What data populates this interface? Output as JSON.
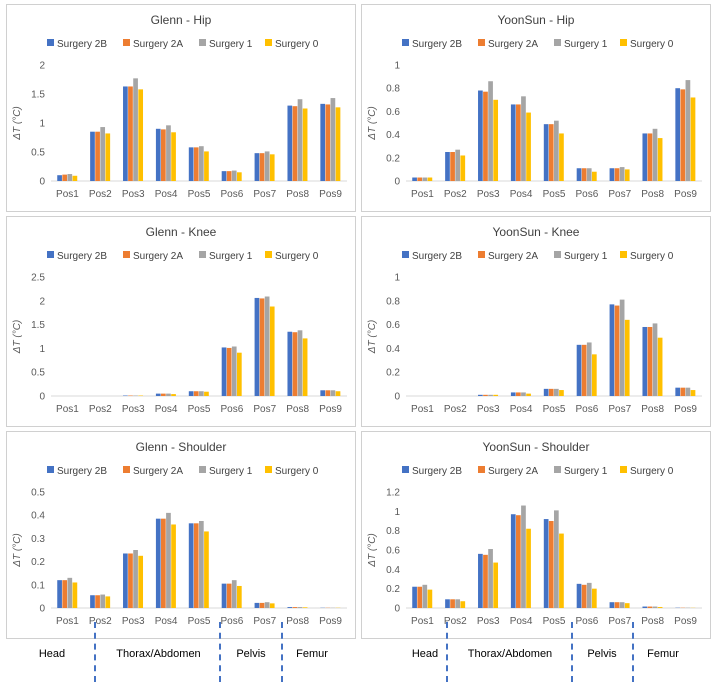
{
  "colors": {
    "Surgery 2B": "#4472c4",
    "Surgery 2A": "#ed7d31",
    "Surgery 1": "#a5a5a5",
    "Surgery 0": "#ffc000"
  },
  "chart_data": [
    {
      "type": "bar",
      "title": "Glenn - Hip",
      "ylabel": "ΔT (°C)",
      "categories": [
        "Pos1",
        "Pos2",
        "Pos3",
        "Pos4",
        "Pos5",
        "Pos6",
        "Pos7",
        "Pos8",
        "Pos9"
      ],
      "yticks": [
        "0",
        "0.5",
        "1",
        "1.5",
        "2"
      ],
      "ylim": [
        0,
        2
      ],
      "series": [
        {
          "name": "Surgery 2B",
          "values": [
            0.1,
            0.85,
            1.63,
            0.9,
            0.58,
            0.17,
            0.48,
            1.3,
            1.33
          ]
        },
        {
          "name": "Surgery 2A",
          "values": [
            0.11,
            0.85,
            1.63,
            0.89,
            0.58,
            0.17,
            0.48,
            1.29,
            1.32
          ]
        },
        {
          "name": "Surgery 1",
          "values": [
            0.12,
            0.93,
            1.77,
            0.96,
            0.6,
            0.18,
            0.51,
            1.41,
            1.43
          ]
        },
        {
          "name": "Surgery 0",
          "values": [
            0.09,
            0.82,
            1.58,
            0.84,
            0.51,
            0.15,
            0.46,
            1.25,
            1.27
          ]
        }
      ]
    },
    {
      "type": "bar",
      "title": "YoonSun - Hip",
      "ylabel": "ΔT (°C)",
      "categories": [
        "Pos1",
        "Pos2",
        "Pos3",
        "Pos4",
        "Pos5",
        "Pos6",
        "Pos7",
        "Pos8",
        "Pos9"
      ],
      "yticks": [
        "0",
        "0.2",
        "0.4",
        "0.6",
        "0.8",
        "1"
      ],
      "ylim": [
        0,
        1
      ],
      "series": [
        {
          "name": "Surgery 2B",
          "values": [
            0.03,
            0.25,
            0.78,
            0.66,
            0.49,
            0.11,
            0.11,
            0.41,
            0.8
          ]
        },
        {
          "name": "Surgery 2A",
          "values": [
            0.03,
            0.25,
            0.77,
            0.66,
            0.49,
            0.11,
            0.11,
            0.41,
            0.79
          ]
        },
        {
          "name": "Surgery 1",
          "values": [
            0.03,
            0.27,
            0.86,
            0.73,
            0.52,
            0.11,
            0.12,
            0.45,
            0.87
          ]
        },
        {
          "name": "Surgery 0",
          "values": [
            0.03,
            0.22,
            0.7,
            0.59,
            0.41,
            0.08,
            0.1,
            0.37,
            0.72
          ]
        }
      ]
    },
    {
      "type": "bar",
      "title": "Glenn - Knee",
      "ylabel": "ΔT (°C)",
      "categories": [
        "Pos1",
        "Pos2",
        "Pos3",
        "Pos4",
        "Pos5",
        "Pos6",
        "Pos7",
        "Pos8",
        "Pos9"
      ],
      "yticks": [
        "0",
        "0.5",
        "1",
        "1.5",
        "2",
        "2.5"
      ],
      "ylim": [
        0,
        2.5
      ],
      "series": [
        {
          "name": "Surgery 2B",
          "values": [
            0.0,
            0.0,
            0.01,
            0.05,
            0.1,
            1.02,
            2.06,
            1.35,
            0.12
          ]
        },
        {
          "name": "Surgery 2A",
          "values": [
            0.0,
            0.0,
            0.01,
            0.05,
            0.1,
            1.01,
            2.05,
            1.34,
            0.12
          ]
        },
        {
          "name": "Surgery 1",
          "values": [
            0.0,
            0.0,
            0.01,
            0.05,
            0.1,
            1.04,
            2.09,
            1.38,
            0.12
          ]
        },
        {
          "name": "Surgery 0",
          "values": [
            0.0,
            0.0,
            0.01,
            0.04,
            0.09,
            0.91,
            1.88,
            1.21,
            0.1
          ]
        }
      ]
    },
    {
      "type": "bar",
      "title": "YoonSun - Knee",
      "ylabel": "ΔT (°C)",
      "categories": [
        "Pos1",
        "Pos2",
        "Pos3",
        "Pos4",
        "Pos5",
        "Pos6",
        "Pos7",
        "Pos8",
        "Pos9"
      ],
      "yticks": [
        "0",
        "0.2",
        "0.4",
        "0.6",
        "0.8",
        "1"
      ],
      "ylim": [
        0,
        1
      ],
      "series": [
        {
          "name": "Surgery 2B",
          "values": [
            0.0,
            0.0,
            0.01,
            0.03,
            0.06,
            0.43,
            0.77,
            0.58,
            0.07
          ]
        },
        {
          "name": "Surgery 2A",
          "values": [
            0.0,
            0.0,
            0.01,
            0.03,
            0.06,
            0.43,
            0.76,
            0.58,
            0.07
          ]
        },
        {
          "name": "Surgery 1",
          "values": [
            0.0,
            0.0,
            0.01,
            0.03,
            0.06,
            0.45,
            0.81,
            0.61,
            0.07
          ]
        },
        {
          "name": "Surgery 0",
          "values": [
            0.0,
            0.0,
            0.01,
            0.02,
            0.05,
            0.35,
            0.64,
            0.49,
            0.05
          ]
        }
      ]
    },
    {
      "type": "bar",
      "title": "Glenn - Shoulder",
      "ylabel": "ΔT (°C)",
      "categories": [
        "Pos1",
        "Pos2",
        "Pos3",
        "Pos4",
        "Pos5",
        "Pos6",
        "Pos7",
        "Pos8",
        "Pos9"
      ],
      "yticks": [
        "0",
        "0.1",
        "0.2",
        "0.3",
        "0.4",
        "0.5"
      ],
      "ylim": [
        0,
        0.5
      ],
      "series": [
        {
          "name": "Surgery 2B",
          "values": [
            0.12,
            0.055,
            0.235,
            0.385,
            0.365,
            0.105,
            0.022,
            0.004,
            0.001
          ]
        },
        {
          "name": "Surgery 2A",
          "values": [
            0.12,
            0.055,
            0.235,
            0.385,
            0.365,
            0.105,
            0.022,
            0.004,
            0.001
          ]
        },
        {
          "name": "Surgery 1",
          "values": [
            0.13,
            0.058,
            0.25,
            0.41,
            0.375,
            0.12,
            0.025,
            0.004,
            0.001
          ]
        },
        {
          "name": "Surgery 0",
          "values": [
            0.11,
            0.05,
            0.225,
            0.36,
            0.33,
            0.095,
            0.02,
            0.003,
            0.001
          ]
        }
      ]
    },
    {
      "type": "bar",
      "title": "YoonSun - Shoulder",
      "ylabel": "ΔT (°C)",
      "categories": [
        "Pos1",
        "Pos2",
        "Pos3",
        "Pos4",
        "Pos5",
        "Pos6",
        "Pos7",
        "Pos8",
        "Pos9"
      ],
      "yticks": [
        "0",
        "0.2",
        "0.4",
        "0.6",
        "0.8",
        "1",
        "1.2"
      ],
      "ylim": [
        0,
        1.2
      ],
      "series": [
        {
          "name": "Surgery 2B",
          "values": [
            0.22,
            0.09,
            0.56,
            0.97,
            0.92,
            0.25,
            0.06,
            0.015,
            0.003
          ]
        },
        {
          "name": "Surgery 2A",
          "values": [
            0.22,
            0.09,
            0.55,
            0.96,
            0.9,
            0.24,
            0.06,
            0.015,
            0.003
          ]
        },
        {
          "name": "Surgery 1",
          "values": [
            0.24,
            0.09,
            0.61,
            1.06,
            1.01,
            0.26,
            0.06,
            0.015,
            0.003
          ]
        },
        {
          "name": "Surgery 0",
          "values": [
            0.19,
            0.07,
            0.47,
            0.82,
            0.77,
            0.2,
            0.05,
            0.01,
            0.002
          ]
        }
      ]
    }
  ],
  "regions": [
    "Head",
    "Thorax/Abdomen",
    "Pelvis",
    "Femur"
  ]
}
